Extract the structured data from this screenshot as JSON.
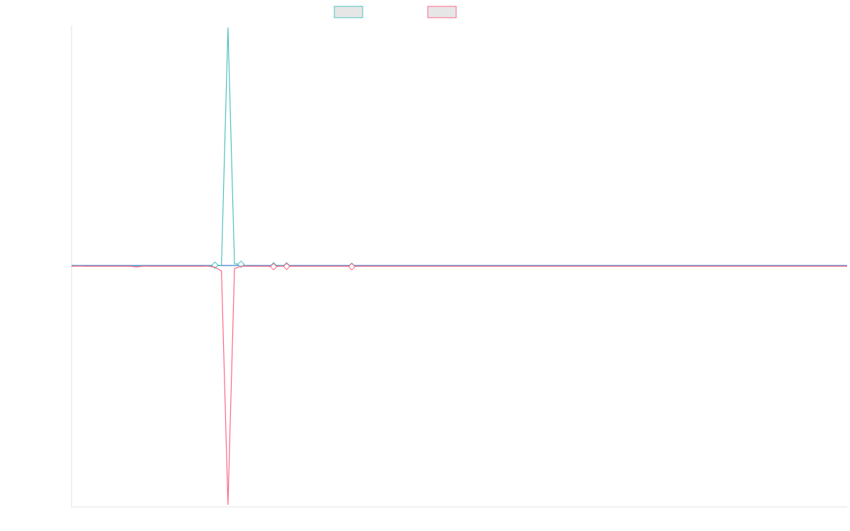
{
  "colors": {
    "series_a": "#4bc0c0",
    "series_b": "#ff6384",
    "zero_line": "#5b8fd6",
    "axis": "#e0e0e0",
    "swatch_fill": "#e6e6e6"
  },
  "chart_data": {
    "type": "line",
    "title": "",
    "xlabel": "",
    "ylabel": "",
    "grid": false,
    "legend_position": "top-center",
    "x_count": 120,
    "ylim": [
      -1,
      1
    ],
    "series": [
      {
        "color_key": "series_a",
        "points": [
          [
            0,
            0
          ],
          [
            1,
            0.002
          ],
          [
            2,
            0
          ],
          [
            10,
            0
          ],
          [
            11,
            0.001
          ],
          [
            12,
            0
          ],
          [
            20,
            0
          ],
          [
            21,
            0.001
          ],
          [
            22,
            0
          ],
          [
            23,
            0.004
          ],
          [
            24,
            0.99
          ],
          [
            25,
            0.01
          ],
          [
            26,
            0.008
          ],
          [
            27,
            0
          ],
          [
            31,
            0
          ],
          [
            32,
            0.002
          ],
          [
            33,
            0
          ],
          [
            119,
            0
          ]
        ],
        "markers": [
          [
            22,
            0.004
          ],
          [
            26,
            0.008
          ],
          [
            31,
            0.002
          ],
          [
            33,
            0.002
          ],
          [
            43,
            0
          ]
        ]
      },
      {
        "color_key": "series_b",
        "points": [
          [
            0,
            0
          ],
          [
            9,
            0
          ],
          [
            10,
            -0.003
          ],
          [
            11,
            0
          ],
          [
            21,
            0
          ],
          [
            22,
            -0.004
          ],
          [
            23,
            -0.02
          ],
          [
            24,
            -0.99
          ],
          [
            25,
            -0.01
          ],
          [
            26,
            0
          ],
          [
            30,
            0
          ],
          [
            31,
            -0.003
          ],
          [
            32,
            0
          ],
          [
            33,
            0
          ],
          [
            119,
            0
          ]
        ],
        "markers": [
          [
            31,
            -0.002
          ],
          [
            33,
            -0.001
          ],
          [
            43,
            -0.002
          ]
        ]
      }
    ]
  }
}
